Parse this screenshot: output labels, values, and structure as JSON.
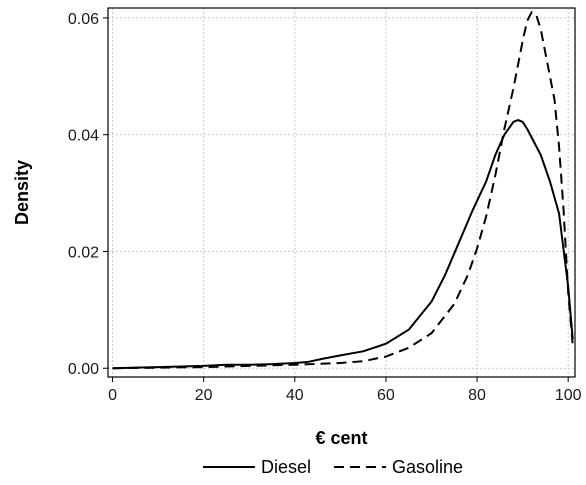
{
  "chart_data": {
    "type": "line",
    "xlabel": "€ cent",
    "ylabel": "Density",
    "xlim": [
      -1,
      101.5
    ],
    "ylim": [
      -0.0015,
      0.0617
    ],
    "x_ticks": [
      0,
      20,
      40,
      60,
      80,
      100
    ],
    "x_tick_labels": [
      "0",
      "20",
      "40",
      "60",
      "80",
      "100"
    ],
    "y_ticks": [
      0.0,
      0.02,
      0.04,
      0.06
    ],
    "y_tick_labels": [
      "0.00",
      "0.02",
      "0.04",
      "0.06"
    ],
    "grid": true,
    "legend_position": "bottom",
    "series": [
      {
        "name": "Diesel",
        "line_style": "solid",
        "color": "#000000",
        "x": [
          0,
          5,
          10,
          15,
          20,
          25,
          30,
          35,
          40,
          43,
          46,
          50,
          55,
          60,
          65,
          70,
          73,
          76,
          79,
          82,
          84,
          86,
          88,
          89,
          90,
          91,
          92,
          94,
          96,
          98,
          100,
          101
        ],
        "y": [
          0.0,
          0.0001,
          0.0002,
          0.0003,
          0.0004,
          0.0006,
          0.0006,
          0.0007,
          0.0009,
          0.0011,
          0.0016,
          0.0022,
          0.0029,
          0.0042,
          0.0066,
          0.0114,
          0.016,
          0.0215,
          0.027,
          0.032,
          0.0365,
          0.04,
          0.0422,
          0.0425,
          0.0422,
          0.041,
          0.0395,
          0.0365,
          0.032,
          0.0265,
          0.014,
          0.005
        ]
      },
      {
        "name": "Gasoline",
        "line_style": "dashed",
        "color": "#000000",
        "x": [
          0,
          10,
          20,
          30,
          40,
          50,
          55,
          60,
          65,
          70,
          75,
          78,
          80,
          82,
          84,
          86,
          88,
          89,
          90,
          91,
          92,
          93,
          94,
          95,
          96,
          97,
          98,
          99,
          100,
          101
        ],
        "y": [
          0.0,
          0.0001,
          0.0002,
          0.0004,
          0.0006,
          0.0009,
          0.0012,
          0.002,
          0.0035,
          0.006,
          0.011,
          0.016,
          0.0205,
          0.026,
          0.033,
          0.041,
          0.048,
          0.052,
          0.056,
          0.0595,
          0.061,
          0.0605,
          0.058,
          0.054,
          0.05,
          0.046,
          0.038,
          0.027,
          0.013,
          0.004
        ]
      }
    ]
  }
}
